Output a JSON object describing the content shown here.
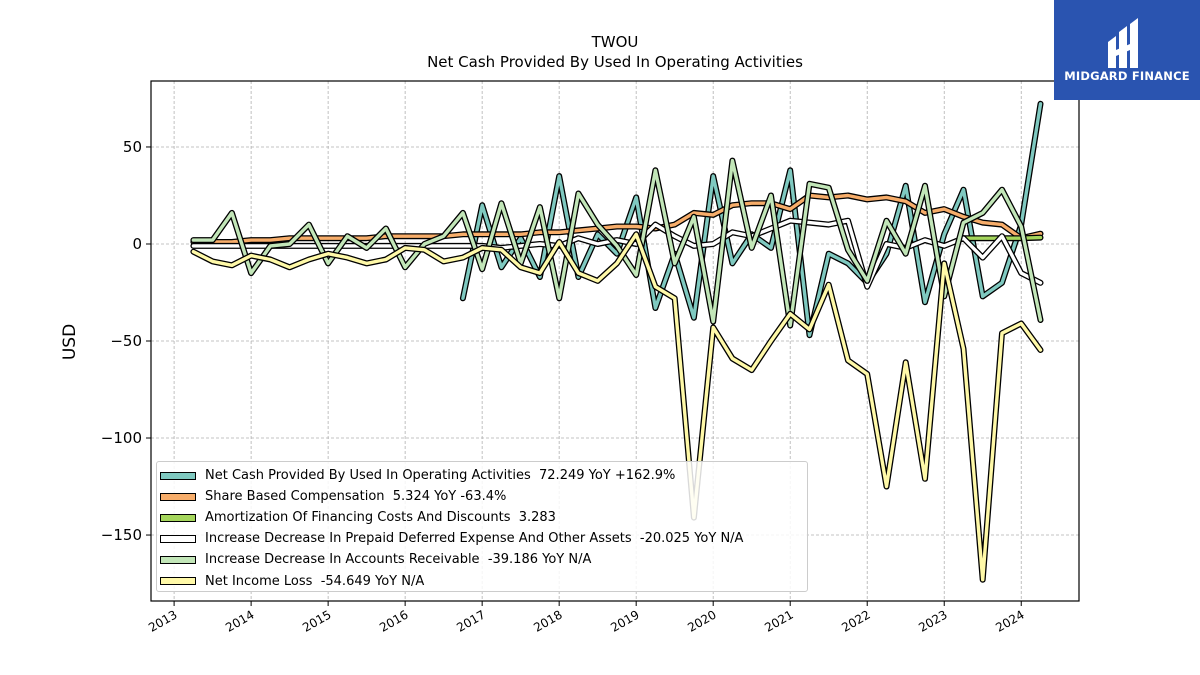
{
  "branding": {
    "name": "MIDGARD FINANCE",
    "color": "#2a54b0"
  },
  "chart_data": {
    "type": "line",
    "title": "TWOU",
    "subtitle": "Net Cash Provided By Used In Operating Activities",
    "xlabel": "",
    "ylabel": "USD",
    "xlim": [
      2012.7,
      2024.75
    ],
    "ylim": [
      -184,
      84
    ],
    "yticks": [
      50,
      0,
      -50,
      -100,
      -150
    ],
    "ytick_labels": [
      "50",
      "0",
      "−50",
      "−100",
      "−150"
    ],
    "xticks": [
      "2013",
      "2014",
      "2015",
      "2016",
      "2017",
      "2018",
      "2019",
      "2020",
      "2021",
      "2022",
      "2023",
      "2024"
    ],
    "grid": true,
    "legend_position": "lower-left",
    "series": [
      {
        "name": "Net Cash Provided By Used In Operating Activities",
        "legend_label": "Net Cash Provided By Used In Operating Activities  72.249 YoY +162.9%",
        "color": "#7fc9c0",
        "points": [
          [
            2016.75,
            -28
          ],
          [
            2017.0,
            20
          ],
          [
            2017.25,
            -12
          ],
          [
            2017.5,
            3
          ],
          [
            2017.75,
            -17
          ],
          [
            2018.0,
            35
          ],
          [
            2018.25,
            -17
          ],
          [
            2018.5,
            5
          ],
          [
            2018.75,
            -5
          ],
          [
            2019.0,
            24
          ],
          [
            2019.25,
            -33
          ],
          [
            2019.5,
            -5
          ],
          [
            2019.75,
            -38
          ],
          [
            2020.0,
            35
          ],
          [
            2020.25,
            -10
          ],
          [
            2020.5,
            5
          ],
          [
            2020.75,
            -2
          ],
          [
            2021.0,
            38
          ],
          [
            2021.25,
            -47
          ],
          [
            2021.5,
            -5
          ],
          [
            2021.75,
            -10
          ],
          [
            2022.0,
            -20
          ],
          [
            2022.25,
            -5
          ],
          [
            2022.5,
            30
          ],
          [
            2022.75,
            -30
          ],
          [
            2023.0,
            5
          ],
          [
            2023.25,
            28
          ],
          [
            2023.5,
            -27
          ],
          [
            2023.75,
            -20
          ],
          [
            2024.0,
            10
          ],
          [
            2024.25,
            72.249
          ]
        ]
      },
      {
        "name": "Share Based Compensation",
        "legend_label": "Share Based Compensation  5.324 YoY -63.4%",
        "color": "#f7ad6a",
        "points": [
          [
            2013.25,
            1
          ],
          [
            2013.5,
            1
          ],
          [
            2013.75,
            1
          ],
          [
            2014.0,
            2
          ],
          [
            2014.25,
            2
          ],
          [
            2014.5,
            3
          ],
          [
            2014.75,
            3
          ],
          [
            2015.0,
            3
          ],
          [
            2015.25,
            3
          ],
          [
            2015.5,
            3
          ],
          [
            2015.75,
            4
          ],
          [
            2016.0,
            4
          ],
          [
            2016.25,
            4
          ],
          [
            2016.5,
            4
          ],
          [
            2016.75,
            5
          ],
          [
            2017.0,
            5
          ],
          [
            2017.25,
            5
          ],
          [
            2017.5,
            5
          ],
          [
            2017.75,
            6
          ],
          [
            2018.0,
            6
          ],
          [
            2018.25,
            7
          ],
          [
            2018.5,
            8
          ],
          [
            2018.75,
            9
          ],
          [
            2019.0,
            9
          ],
          [
            2019.25,
            8
          ],
          [
            2019.5,
            10
          ],
          [
            2019.75,
            16
          ],
          [
            2020.0,
            15
          ],
          [
            2020.25,
            20
          ],
          [
            2020.5,
            21
          ],
          [
            2020.75,
            21
          ],
          [
            2021.0,
            18
          ],
          [
            2021.25,
            25
          ],
          [
            2021.5,
            24
          ],
          [
            2021.75,
            25
          ],
          [
            2022.0,
            23
          ],
          [
            2022.25,
            24
          ],
          [
            2022.5,
            22
          ],
          [
            2022.75,
            16
          ],
          [
            2023.0,
            18
          ],
          [
            2023.25,
            14
          ],
          [
            2023.5,
            11
          ],
          [
            2023.75,
            10
          ],
          [
            2024.0,
            3
          ],
          [
            2024.25,
            5.324
          ]
        ]
      },
      {
        "name": "Amortization Of Financing Costs And Discounts",
        "legend_label": "Amortization Of Financing Costs And Discounts  3.283",
        "color": "#a5d65c",
        "points": [
          [
            2023.25,
            3
          ],
          [
            2023.5,
            3
          ],
          [
            2023.75,
            3
          ],
          [
            2024.0,
            3
          ],
          [
            2024.25,
            3.283
          ]
        ]
      },
      {
        "name": "Increase Decrease In Prepaid Deferred Expense And Other Assets",
        "legend_label": "Increase Decrease In Prepaid Deferred Expense And Other Assets  -20.025 YoY N/A",
        "color": "#ffffff",
        "points": [
          [
            2013.25,
            -1
          ],
          [
            2013.5,
            -1
          ],
          [
            2013.75,
            -1
          ],
          [
            2014.0,
            -1
          ],
          [
            2014.25,
            -1
          ],
          [
            2014.5,
            -1
          ],
          [
            2014.75,
            -1
          ],
          [
            2015.0,
            -1
          ],
          [
            2015.25,
            -1
          ],
          [
            2015.5,
            -1
          ],
          [
            2015.75,
            -1
          ],
          [
            2016.0,
            -1
          ],
          [
            2016.25,
            -1
          ],
          [
            2016.5,
            -1
          ],
          [
            2016.75,
            -1
          ],
          [
            2017.0,
            -1
          ],
          [
            2017.25,
            -2
          ],
          [
            2017.5,
            -1
          ],
          [
            2017.75,
            0
          ],
          [
            2018.0,
            -1
          ],
          [
            2018.25,
            3
          ],
          [
            2018.5,
            0
          ],
          [
            2018.75,
            2
          ],
          [
            2019.0,
            0
          ],
          [
            2019.25,
            10
          ],
          [
            2019.5,
            4
          ],
          [
            2019.75,
            -1
          ],
          [
            2020.0,
            0
          ],
          [
            2020.25,
            6
          ],
          [
            2020.5,
            4
          ],
          [
            2020.75,
            8
          ],
          [
            2021.0,
            12
          ],
          [
            2021.25,
            11
          ],
          [
            2021.5,
            10
          ],
          [
            2021.75,
            12
          ],
          [
            2022.0,
            -22
          ],
          [
            2022.25,
            0
          ],
          [
            2022.5,
            -2
          ],
          [
            2022.75,
            2
          ],
          [
            2023.0,
            -1
          ],
          [
            2023.25,
            3
          ],
          [
            2023.5,
            -7
          ],
          [
            2023.75,
            4
          ],
          [
            2024.0,
            -15
          ],
          [
            2024.25,
            -20.025
          ]
        ]
      },
      {
        "name": "Increase Decrease In Accounts Receivable",
        "legend_label": "Increase Decrease In Accounts Receivable  -39.186 YoY N/A",
        "color": "#c2e6b8",
        "points": [
          [
            2013.25,
            2
          ],
          [
            2013.5,
            2
          ],
          [
            2013.75,
            16
          ],
          [
            2014.0,
            -15
          ],
          [
            2014.25,
            -1
          ],
          [
            2014.5,
            0
          ],
          [
            2014.75,
            10
          ],
          [
            2015.0,
            -10
          ],
          [
            2015.25,
            4
          ],
          [
            2015.5,
            -2
          ],
          [
            2015.75,
            8
          ],
          [
            2016.0,
            -12
          ],
          [
            2016.25,
            0
          ],
          [
            2016.5,
            4
          ],
          [
            2016.75,
            16
          ],
          [
            2017.0,
            -13
          ],
          [
            2017.25,
            21
          ],
          [
            2017.5,
            -10
          ],
          [
            2017.75,
            19
          ],
          [
            2018.0,
            -28
          ],
          [
            2018.25,
            26
          ],
          [
            2018.5,
            10
          ],
          [
            2018.75,
            -1
          ],
          [
            2019.0,
            -16
          ],
          [
            2019.25,
            38
          ],
          [
            2019.5,
            -10
          ],
          [
            2019.75,
            14
          ],
          [
            2020.0,
            -40
          ],
          [
            2020.25,
            43
          ],
          [
            2020.5,
            -2
          ],
          [
            2020.75,
            25
          ],
          [
            2021.0,
            -42
          ],
          [
            2021.25,
            31
          ],
          [
            2021.5,
            29
          ],
          [
            2021.75,
            -3
          ],
          [
            2022.0,
            -19
          ],
          [
            2022.25,
            12
          ],
          [
            2022.5,
            -5
          ],
          [
            2022.75,
            30
          ],
          [
            2023.0,
            -27
          ],
          [
            2023.25,
            11
          ],
          [
            2023.5,
            16
          ],
          [
            2023.75,
            28
          ],
          [
            2024.0,
            9
          ],
          [
            2024.25,
            -39.186
          ]
        ]
      },
      {
        "name": "Net Income Loss",
        "legend_label": "Net Income Loss  -54.649 YoY N/A",
        "color": "#fff9a8",
        "points": [
          [
            2013.25,
            -4
          ],
          [
            2013.5,
            -9
          ],
          [
            2013.75,
            -11
          ],
          [
            2014.0,
            -6
          ],
          [
            2014.25,
            -8
          ],
          [
            2014.5,
            -12
          ],
          [
            2014.75,
            -8
          ],
          [
            2015.0,
            -5
          ],
          [
            2015.25,
            -7
          ],
          [
            2015.5,
            -10
          ],
          [
            2015.75,
            -8
          ],
          [
            2016.0,
            -2
          ],
          [
            2016.25,
            -3
          ],
          [
            2016.5,
            -9
          ],
          [
            2016.75,
            -7
          ],
          [
            2017.0,
            -2
          ],
          [
            2017.25,
            -3
          ],
          [
            2017.5,
            -12
          ],
          [
            2017.75,
            -15
          ],
          [
            2018.0,
            1
          ],
          [
            2018.25,
            -15
          ],
          [
            2018.5,
            -19
          ],
          [
            2018.75,
            -10
          ],
          [
            2019.0,
            5
          ],
          [
            2019.25,
            -22
          ],
          [
            2019.5,
            -28
          ],
          [
            2019.75,
            -141
          ],
          [
            2020.0,
            -43
          ],
          [
            2020.25,
            -59
          ],
          [
            2020.5,
            -65
          ],
          [
            2020.75,
            -50
          ],
          [
            2021.0,
            -36
          ],
          [
            2021.25,
            -44
          ],
          [
            2021.5,
            -21
          ],
          [
            2021.75,
            -60
          ],
          [
            2022.0,
            -67
          ],
          [
            2022.25,
            -125
          ],
          [
            2022.5,
            -61
          ],
          [
            2022.75,
            -121
          ],
          [
            2023.0,
            -10
          ],
          [
            2023.25,
            -54
          ],
          [
            2023.5,
            -173
          ],
          [
            2023.75,
            -46
          ],
          [
            2024.0,
            -41
          ],
          [
            2024.25,
            -54.649
          ]
        ]
      }
    ]
  }
}
